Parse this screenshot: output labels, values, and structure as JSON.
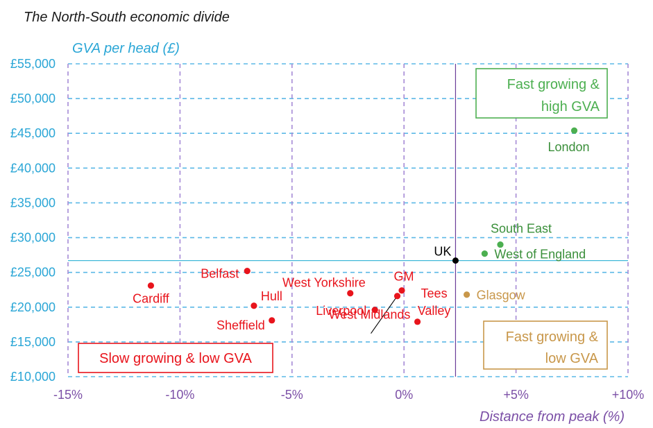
{
  "chart_data": {
    "type": "scatter",
    "title": "The North-South economic divide",
    "xlabel": "Distance from peak (%)",
    "ylabel": "GVA per head (£)",
    "xlim": [
      -15,
      10
    ],
    "ylim": [
      10000,
      55000
    ],
    "x_ticks": [
      -15,
      -10,
      -5,
      0,
      5,
      10
    ],
    "x_tick_labels": [
      "-15%",
      "-10%",
      "-5%",
      "0%",
      "+5%",
      "+10%"
    ],
    "y_ticks": [
      10000,
      15000,
      20000,
      25000,
      30000,
      35000,
      40000,
      45000,
      50000,
      55000
    ],
    "y_tick_labels": [
      "£10,000",
      "£15,000",
      "£20,000",
      "£25,000",
      "£30,000",
      "£35,000",
      "£40,000",
      "£45,000",
      "£50,000",
      "£55,000"
    ],
    "grid": true,
    "reference_lines": {
      "x": 2.3,
      "y": 26700
    },
    "quadrant_labels": [
      {
        "text": [
          "Fast growing &",
          "high GVA"
        ],
        "color": "#4caf50",
        "position": "top-right"
      },
      {
        "text": [
          "Fast growing &",
          "low GVA"
        ],
        "color": "#c8974a",
        "position": "bottom-right"
      },
      {
        "text": [
          "Slow growing & low GVA"
        ],
        "color": "#e8141c",
        "position": "bottom-left"
      }
    ],
    "points": [
      {
        "name": "London",
        "x": 7.6,
        "y": 45400,
        "color": "#4caf50",
        "label_color": "#3a8f3a"
      },
      {
        "name": "South East",
        "x": 4.3,
        "y": 29000,
        "color": "#4caf50",
        "label_color": "#3a8f3a"
      },
      {
        "name": "West of England",
        "x": 3.6,
        "y": 27700,
        "color": "#4caf50",
        "label_color": "#3a8f3a"
      },
      {
        "name": "UK",
        "x": 2.3,
        "y": 26700,
        "color": "#000000",
        "label_color": "#000000"
      },
      {
        "name": "Glasgow",
        "x": 2.8,
        "y": 21800,
        "color": "#c8974a",
        "label_color": "#c8974a"
      },
      {
        "name": "Tees Valley",
        "label_lines": [
          "Tees",
          "Valley"
        ],
        "x": 0.6,
        "y": 17900,
        "color": "#e8141c",
        "label_color": "#e8141c"
      },
      {
        "name": "GM",
        "x": -0.1,
        "y": 22400,
        "color": "#e8141c",
        "label_color": "#e8141c"
      },
      {
        "name": "West Midlands",
        "x": -0.3,
        "y": 21600,
        "color": "#e8141c",
        "label_color": "#e8141c"
      },
      {
        "name": "West Yorkshire",
        "x": -2.4,
        "y": 22000,
        "color": "#e8141c",
        "label_color": "#e8141c"
      },
      {
        "name": "Liverpool",
        "x": -1.3,
        "y": 19600,
        "color": "#e8141c",
        "label_color": "#e8141c"
      },
      {
        "name": "Belfast",
        "x": -7.0,
        "y": 25200,
        "color": "#e8141c",
        "label_color": "#e8141c"
      },
      {
        "name": "Hull",
        "x": -6.7,
        "y": 20200,
        "color": "#e8141c",
        "label_color": "#e8141c"
      },
      {
        "name": "Sheffield",
        "x": -5.9,
        "y": 18100,
        "color": "#e8141c",
        "label_color": "#e8141c"
      },
      {
        "name": "Cardiff",
        "x": -11.3,
        "y": 23100,
        "color": "#e8141c",
        "label_color": "#e8141c"
      }
    ]
  }
}
